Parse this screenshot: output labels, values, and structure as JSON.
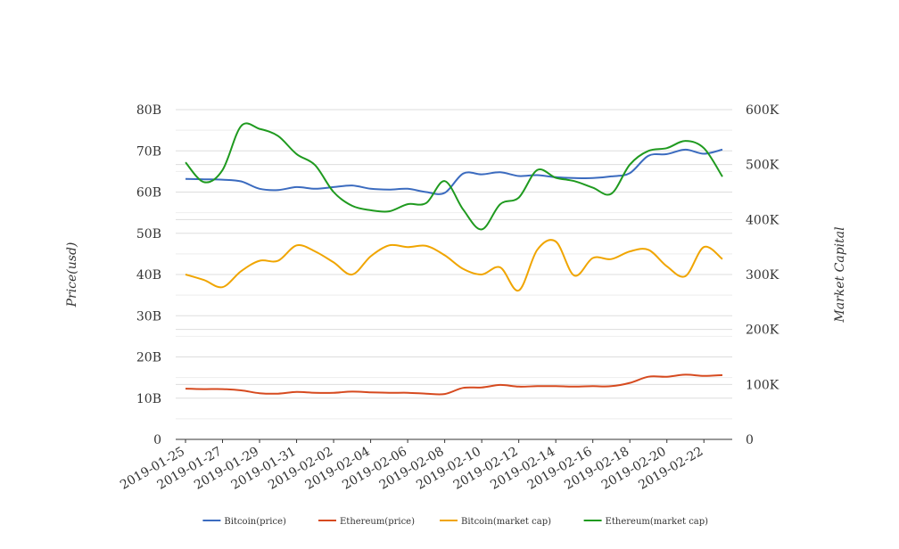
{
  "chart_data": {
    "type": "line",
    "x": [
      "2019-01-25",
      "2019-01-26",
      "2019-01-27",
      "2019-01-28",
      "2019-01-29",
      "2019-01-30",
      "2019-01-31",
      "2019-02-01",
      "2019-02-02",
      "2019-02-03",
      "2019-02-04",
      "2019-02-05",
      "2019-02-06",
      "2019-02-07",
      "2019-02-08",
      "2019-02-09",
      "2019-02-10",
      "2019-02-11",
      "2019-02-12",
      "2019-02-13",
      "2019-02-14",
      "2019-02-15",
      "2019-02-16",
      "2019-02-17",
      "2019-02-18",
      "2019-02-19",
      "2019-02-20",
      "2019-02-21",
      "2019-02-22",
      "2019-02-23"
    ],
    "x_tick_labels": [
      "2019-01-25",
      "2019-01-27",
      "2019-01-29",
      "2019-01-31",
      "2019-02-02",
      "2019-02-04",
      "2019-02-06",
      "2019-02-08",
      "2019-02-10",
      "2019-02-12",
      "2019-02-14",
      "2019-02-16",
      "2019-02-18",
      "2019-02-20",
      "2019-02-22"
    ],
    "y_left": {
      "label": "Price(usd)",
      "ylim": [
        0,
        80
      ],
      "ticks": [
        0,
        10,
        20,
        30,
        40,
        50,
        60,
        70,
        80
      ],
      "tick_labels": [
        "0",
        "10B",
        "20B",
        "30B",
        "40B",
        "50B",
        "60B",
        "70B",
        "80B"
      ]
    },
    "y_right": {
      "label": "Market Capital",
      "ylim": [
        0,
        600
      ],
      "ticks": [
        0,
        100,
        200,
        300,
        400,
        500,
        600
      ],
      "tick_labels": [
        "0",
        "100K",
        "200K",
        "300K",
        "400K",
        "500K",
        "600K"
      ]
    },
    "series": [
      {
        "name": "Bitcoin(price)",
        "color": "#3b6bbf",
        "axis": "left",
        "values": [
          63.2,
          63.1,
          63.0,
          62.6,
          60.8,
          60.5,
          61.2,
          60.8,
          61.2,
          61.6,
          60.8,
          60.6,
          60.8,
          60.0,
          59.8,
          64.5,
          64.3,
          64.8,
          63.9,
          64.1,
          63.6,
          63.4,
          63.4,
          63.8,
          64.6,
          68.8,
          69.2,
          70.3,
          69.3,
          70.3
        ]
      },
      {
        "name": "Ethereum(price)",
        "color": "#d64a1f",
        "axis": "left",
        "values": [
          12.3,
          12.2,
          12.2,
          11.9,
          11.2,
          11.1,
          11.5,
          11.3,
          11.3,
          11.6,
          11.4,
          11.3,
          11.3,
          11.1,
          11.0,
          12.5,
          12.6,
          13.2,
          12.8,
          12.9,
          12.9,
          12.8,
          12.9,
          12.9,
          13.7,
          15.2,
          15.2,
          15.7,
          15.4,
          15.6
        ]
      },
      {
        "name": "Bitcoin(market cap)",
        "color": "#f0a500",
        "axis": "right",
        "values": [
          300,
          290,
          277,
          306,
          325,
          325,
          353,
          342,
          322,
          300,
          333,
          353,
          350,
          352,
          335,
          310,
          300,
          313,
          271,
          345,
          360,
          298,
          330,
          328,
          342,
          345,
          315,
          297,
          350,
          328
        ]
      },
      {
        "name": "Ethereum(market cap)",
        "color": "#1f9a1f",
        "axis": "right",
        "values": [
          504,
          468,
          490,
          570,
          565,
          552,
          519,
          499,
          450,
          425,
          417,
          415,
          428,
          430,
          470,
          418,
          382,
          428,
          440,
          490,
          476,
          470,
          458,
          447,
          500,
          525,
          530,
          543,
          530,
          478
        ]
      }
    ],
    "legend": "bottom-center",
    "grid": true
  }
}
